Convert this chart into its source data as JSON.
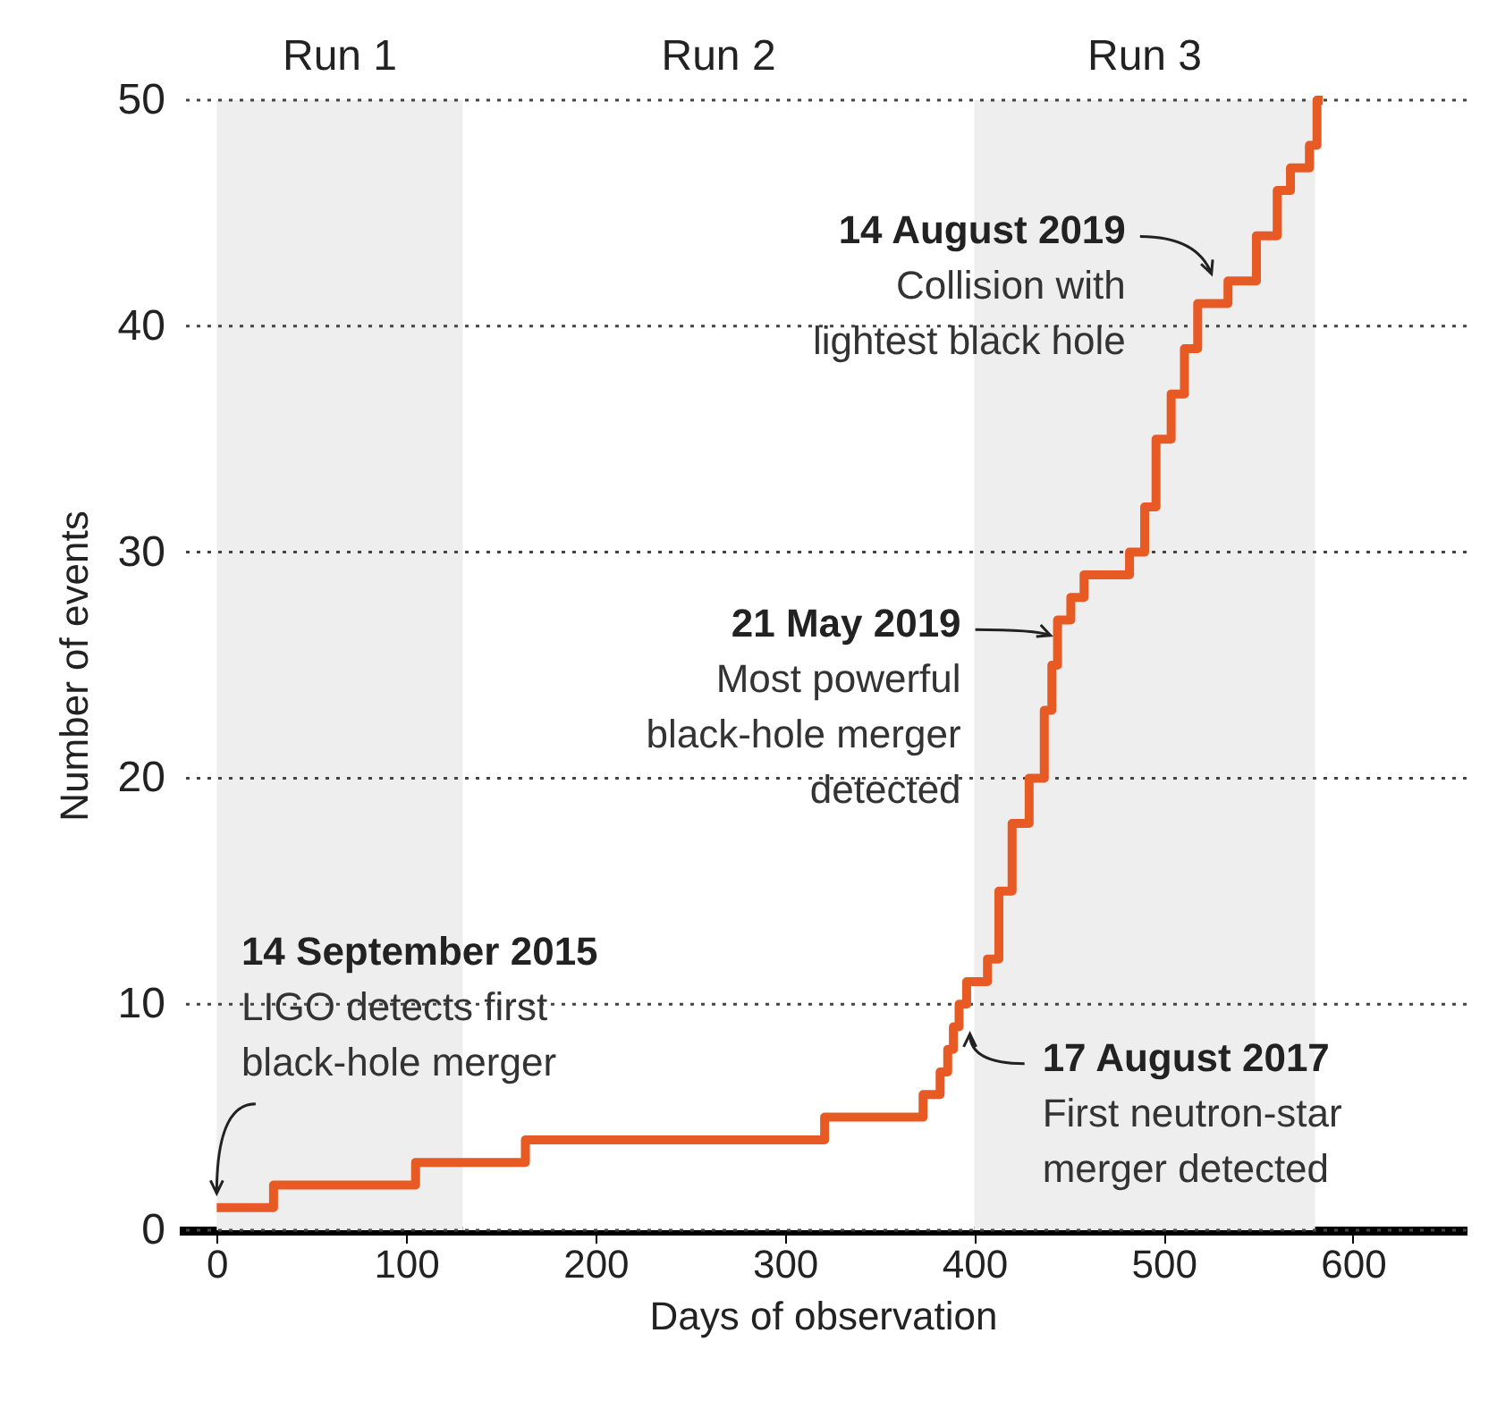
{
  "chart_data": {
    "type": "step",
    "xlabel": "Days of observation",
    "ylabel": "Number of events",
    "color": "#e85a24",
    "x": [
      0,
      30,
      105,
      163,
      321,
      373,
      382,
      386,
      389,
      392,
      396,
      407,
      413,
      420,
      429,
      437,
      441,
      444,
      451,
      458,
      482,
      490,
      496,
      504,
      511,
      518,
      534,
      549,
      560,
      567,
      577,
      581,
      584
    ],
    "values": [
      1,
      2,
      3,
      4,
      5,
      6,
      7,
      8,
      9,
      10,
      11,
      12,
      15,
      18,
      20,
      23,
      25,
      27,
      28,
      29,
      30,
      32,
      35,
      37,
      39,
      41,
      42,
      44,
      46,
      47,
      48,
      50,
      50
    ],
    "xlim": [
      -20,
      660
    ],
    "xticks": [
      0,
      100,
      200,
      300,
      400,
      500,
      600
    ],
    "ylim": [
      0,
      50
    ],
    "yticks": [
      0,
      10,
      20,
      30,
      40,
      50
    ],
    "grid": "y",
    "bands": [
      {
        "axis": "x",
        "from": 0,
        "to": 130,
        "label": "Run 1",
        "color": "#eeeeee"
      },
      {
        "axis": "x",
        "from": 130,
        "to": 400,
        "label": "Run 2",
        "color": "#ffffff"
      },
      {
        "axis": "x",
        "from": 400,
        "to": 580,
        "label": "Run 3",
        "color": "#eeeeee"
      }
    ],
    "annotations": [
      {
        "text": "14 September 2015\nLIGO detects first\nblack-hole merger",
        "x": 0,
        "y": 1
      },
      {
        "text": "17 August 2017\nFirst neutron-star\nmerger detected",
        "x": 393,
        "y": 9
      },
      {
        "text": "21 May 2019\nMost powerful\nblack-hole merger\ndetected",
        "x": 445,
        "y": 26
      },
      {
        "text": "14 August 2019\nCollision with\nlightest black hole",
        "x": 530,
        "y": 42
      }
    ]
  }
}
